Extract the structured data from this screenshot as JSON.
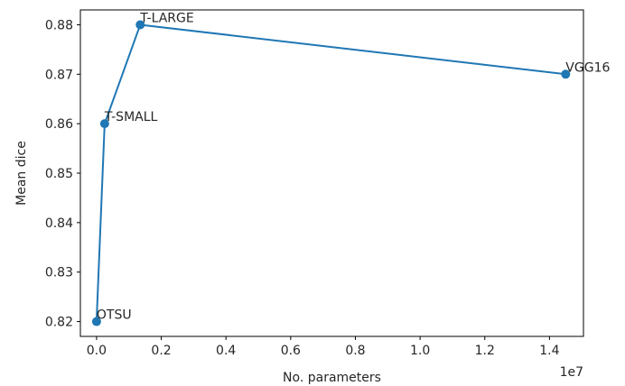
{
  "chart_data": {
    "type": "line",
    "title": "",
    "xlabel": "No. parameters",
    "ylabel": "Mean dice",
    "x_offset_label": "1e7",
    "xlim": [
      -0.05,
      1.505
    ],
    "ylim": [
      0.817,
      0.883
    ],
    "x_ticks": [
      {
        "value": 0.0,
        "label": "0.0"
      },
      {
        "value": 0.2,
        "label": "0.2"
      },
      {
        "value": 0.4,
        "label": "0.4"
      },
      {
        "value": 0.6,
        "label": "0.6"
      },
      {
        "value": 0.8,
        "label": "0.8"
      },
      {
        "value": 1.0,
        "label": "1.0"
      },
      {
        "value": 1.2,
        "label": "1.2"
      },
      {
        "value": 1.4,
        "label": "1.4"
      }
    ],
    "y_ticks": [
      {
        "value": 0.82,
        "label": "0.82"
      },
      {
        "value": 0.83,
        "label": "0.83"
      },
      {
        "value": 0.84,
        "label": "0.84"
      },
      {
        "value": 0.85,
        "label": "0.85"
      },
      {
        "value": 0.86,
        "label": "0.86"
      },
      {
        "value": 0.87,
        "label": "0.87"
      },
      {
        "value": 0.88,
        "label": "0.88"
      }
    ],
    "grid": false,
    "series": [
      {
        "color": "#1f77b4",
        "points": [
          {
            "label": "OTSU",
            "x": 0.0,
            "y": 0.82
          },
          {
            "label": "T-SMALL",
            "x": 0.025,
            "y": 0.86
          },
          {
            "label": "T-LARGE",
            "x": 0.135,
            "y": 0.88
          },
          {
            "label": "VGG16",
            "x": 1.45,
            "y": 0.87
          }
        ]
      }
    ]
  }
}
